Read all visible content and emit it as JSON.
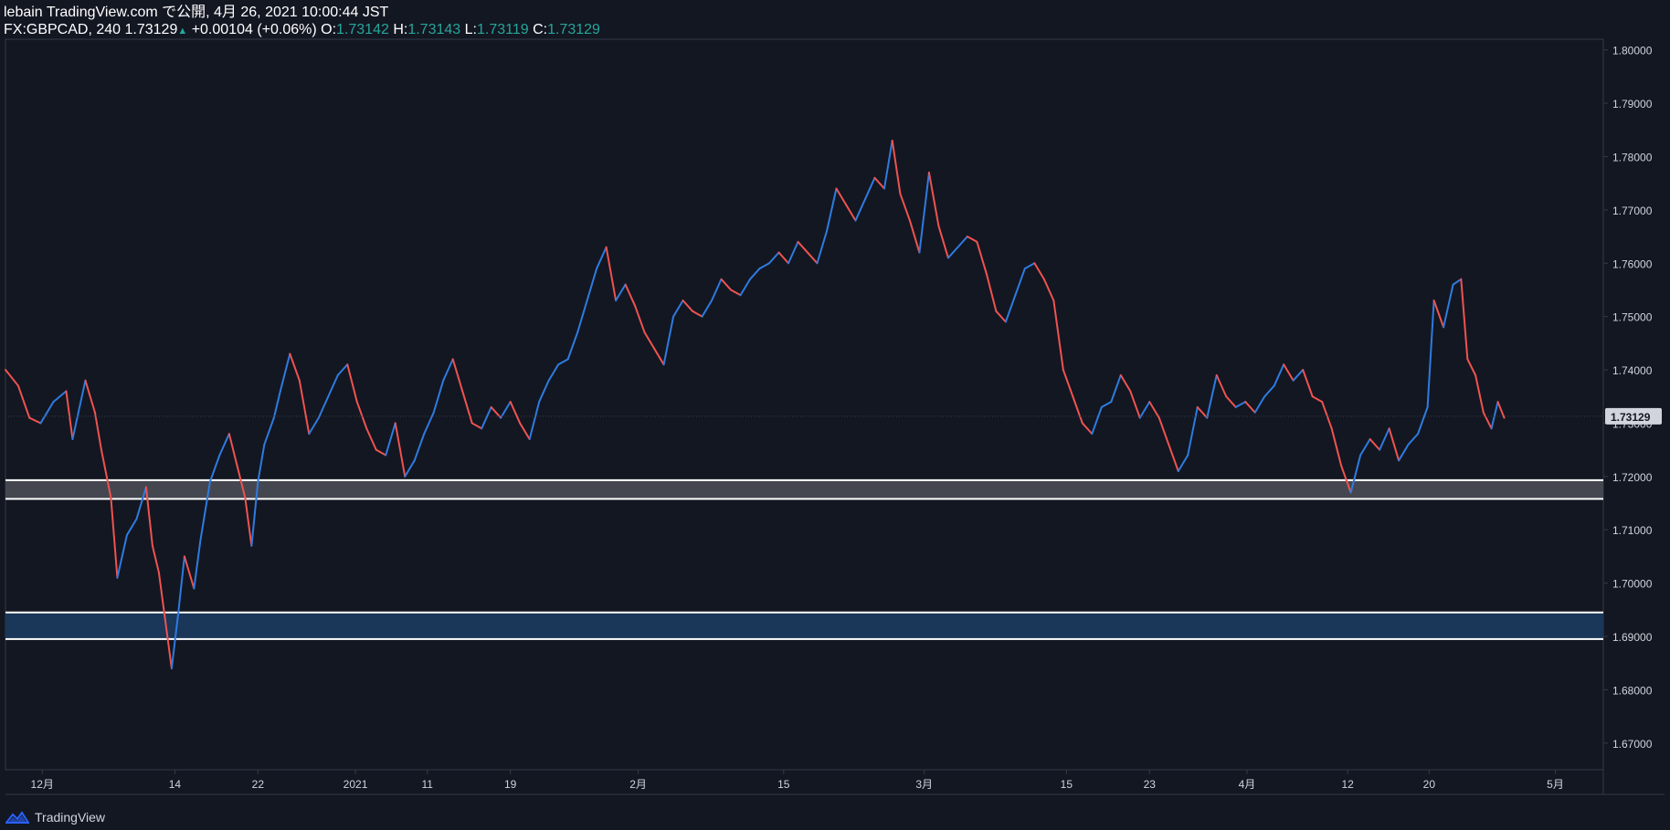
{
  "header": {
    "line1": "lebain TradingView.com で公開, 4月 26, 2021 10:00:44 JST",
    "symbol_interval": "FX:GBPCAD, 240",
    "last": "1.73129",
    "change": "+0.00104 (+0.06%)",
    "o_label": "O:",
    "o": "1.73142",
    "h_label": "H:",
    "h": "1.73143",
    "l_label": "L:",
    "l": "1.73119",
    "c_label": "C:",
    "c": "1.73129"
  },
  "footer": {
    "brand": "TradingView"
  },
  "colors": {
    "bg": "#131722",
    "up": "#2e7be0",
    "down": "#ef5350",
    "grid": "#363a45",
    "text": "#d1d4dc"
  },
  "chart_data": {
    "type": "line",
    "instrument": "FX:GBPCAD",
    "interval": "240",
    "ylim": [
      1.665,
      1.802
    ],
    "y_ticks": [
      "1.80000",
      "1.79000",
      "1.78000",
      "1.77000",
      "1.76000",
      "1.75000",
      "1.74000",
      "1.73000",
      "1.72000",
      "1.71000",
      "1.70000",
      "1.69000",
      "1.68000",
      "1.67000"
    ],
    "x_ticks": [
      {
        "label": "12月",
        "t": 0.023
      },
      {
        "label": "14",
        "t": 0.106
      },
      {
        "label": "22",
        "t": 0.158
      },
      {
        "label": "2021",
        "t": 0.219
      },
      {
        "label": "11",
        "t": 0.264
      },
      {
        "label": "19",
        "t": 0.316
      },
      {
        "label": "2月",
        "t": 0.396
      },
      {
        "label": "15",
        "t": 0.487
      },
      {
        "label": "3月",
        "t": 0.575
      },
      {
        "label": "15",
        "t": 0.664
      },
      {
        "label": "23",
        "t": 0.716
      },
      {
        "label": "4月",
        "t": 0.777
      },
      {
        "label": "12",
        "t": 0.84
      },
      {
        "label": "20",
        "t": 0.891
      },
      {
        "label": "5月",
        "t": 0.97
      }
    ],
    "last_price": "1.73129",
    "zones": [
      {
        "top": 1.7193,
        "bottom": 1.7158,
        "style": "gray"
      },
      {
        "top": 1.6945,
        "bottom": 1.6895,
        "style": "blue"
      }
    ],
    "price_path": [
      [
        0.0,
        1.74
      ],
      [
        0.008,
        1.737
      ],
      [
        0.015,
        1.731
      ],
      [
        0.022,
        1.73
      ],
      [
        0.03,
        1.734
      ],
      [
        0.038,
        1.736
      ],
      [
        0.042,
        1.727
      ],
      [
        0.05,
        1.738
      ],
      [
        0.056,
        1.732
      ],
      [
        0.06,
        1.725
      ],
      [
        0.066,
        1.716
      ],
      [
        0.07,
        1.701
      ],
      [
        0.076,
        1.709
      ],
      [
        0.082,
        1.712
      ],
      [
        0.088,
        1.718
      ],
      [
        0.092,
        1.707
      ],
      [
        0.096,
        1.702
      ],
      [
        0.1,
        1.693
      ],
      [
        0.104,
        1.684
      ],
      [
        0.108,
        1.694
      ],
      [
        0.112,
        1.705
      ],
      [
        0.118,
        1.699
      ],
      [
        0.122,
        1.708
      ],
      [
        0.128,
        1.719
      ],
      [
        0.134,
        1.724
      ],
      [
        0.14,
        1.728
      ],
      [
        0.145,
        1.722
      ],
      [
        0.15,
        1.716
      ],
      [
        0.154,
        1.707
      ],
      [
        0.158,
        1.719
      ],
      [
        0.162,
        1.726
      ],
      [
        0.168,
        1.731
      ],
      [
        0.172,
        1.736
      ],
      [
        0.178,
        1.743
      ],
      [
        0.184,
        1.738
      ],
      [
        0.19,
        1.728
      ],
      [
        0.196,
        1.731
      ],
      [
        0.202,
        1.735
      ],
      [
        0.208,
        1.739
      ],
      [
        0.214,
        1.741
      ],
      [
        0.22,
        1.734
      ],
      [
        0.226,
        1.729
      ],
      [
        0.232,
        1.725
      ],
      [
        0.238,
        1.724
      ],
      [
        0.244,
        1.73
      ],
      [
        0.25,
        1.72
      ],
      [
        0.256,
        1.723
      ],
      [
        0.262,
        1.728
      ],
      [
        0.268,
        1.732
      ],
      [
        0.274,
        1.738
      ],
      [
        0.28,
        1.742
      ],
      [
        0.286,
        1.736
      ],
      [
        0.292,
        1.73
      ],
      [
        0.298,
        1.729
      ],
      [
        0.304,
        1.733
      ],
      [
        0.31,
        1.731
      ],
      [
        0.316,
        1.734
      ],
      [
        0.322,
        1.73
      ],
      [
        0.328,
        1.727
      ],
      [
        0.334,
        1.734
      ],
      [
        0.34,
        1.738
      ],
      [
        0.346,
        1.741
      ],
      [
        0.352,
        1.742
      ],
      [
        0.358,
        1.747
      ],
      [
        0.364,
        1.753
      ],
      [
        0.37,
        1.759
      ],
      [
        0.376,
        1.763
      ],
      [
        0.382,
        1.753
      ],
      [
        0.388,
        1.756
      ],
      [
        0.394,
        1.752
      ],
      [
        0.4,
        1.747
      ],
      [
        0.406,
        1.744
      ],
      [
        0.412,
        1.741
      ],
      [
        0.418,
        1.75
      ],
      [
        0.424,
        1.753
      ],
      [
        0.43,
        1.751
      ],
      [
        0.436,
        1.75
      ],
      [
        0.442,
        1.753
      ],
      [
        0.448,
        1.757
      ],
      [
        0.454,
        1.755
      ],
      [
        0.46,
        1.754
      ],
      [
        0.466,
        1.757
      ],
      [
        0.472,
        1.759
      ],
      [
        0.478,
        1.76
      ],
      [
        0.484,
        1.762
      ],
      [
        0.49,
        1.76
      ],
      [
        0.496,
        1.764
      ],
      [
        0.502,
        1.762
      ],
      [
        0.508,
        1.76
      ],
      [
        0.514,
        1.766
      ],
      [
        0.52,
        1.774
      ],
      [
        0.526,
        1.771
      ],
      [
        0.532,
        1.768
      ],
      [
        0.538,
        1.772
      ],
      [
        0.544,
        1.776
      ],
      [
        0.55,
        1.774
      ],
      [
        0.555,
        1.783
      ],
      [
        0.56,
        1.773
      ],
      [
        0.566,
        1.768
      ],
      [
        0.572,
        1.762
      ],
      [
        0.578,
        1.777
      ],
      [
        0.584,
        1.767
      ],
      [
        0.59,
        1.761
      ],
      [
        0.596,
        1.763
      ],
      [
        0.602,
        1.765
      ],
      [
        0.608,
        1.764
      ],
      [
        0.614,
        1.758
      ],
      [
        0.62,
        1.751
      ],
      [
        0.626,
        1.749
      ],
      [
        0.632,
        1.754
      ],
      [
        0.638,
        1.759
      ],
      [
        0.644,
        1.76
      ],
      [
        0.65,
        1.757
      ],
      [
        0.656,
        1.753
      ],
      [
        0.662,
        1.74
      ],
      [
        0.668,
        1.735
      ],
      [
        0.674,
        1.73
      ],
      [
        0.68,
        1.728
      ],
      [
        0.686,
        1.733
      ],
      [
        0.692,
        1.734
      ],
      [
        0.698,
        1.739
      ],
      [
        0.704,
        1.736
      ],
      [
        0.71,
        1.731
      ],
      [
        0.716,
        1.734
      ],
      [
        0.722,
        1.731
      ],
      [
        0.728,
        1.726
      ],
      [
        0.734,
        1.721
      ],
      [
        0.74,
        1.724
      ],
      [
        0.746,
        1.733
      ],
      [
        0.752,
        1.731
      ],
      [
        0.758,
        1.739
      ],
      [
        0.764,
        1.735
      ],
      [
        0.77,
        1.733
      ],
      [
        0.776,
        1.734
      ],
      [
        0.782,
        1.732
      ],
      [
        0.788,
        1.735
      ],
      [
        0.794,
        1.737
      ],
      [
        0.8,
        1.741
      ],
      [
        0.806,
        1.738
      ],
      [
        0.812,
        1.74
      ],
      [
        0.818,
        1.735
      ],
      [
        0.824,
        1.734
      ],
      [
        0.83,
        1.729
      ],
      [
        0.836,
        1.722
      ],
      [
        0.842,
        1.717
      ],
      [
        0.848,
        1.724
      ],
      [
        0.854,
        1.727
      ],
      [
        0.86,
        1.725
      ],
      [
        0.866,
        1.729
      ],
      [
        0.872,
        1.723
      ],
      [
        0.878,
        1.726
      ],
      [
        0.884,
        1.728
      ],
      [
        0.89,
        1.733
      ],
      [
        0.894,
        1.753
      ],
      [
        0.9,
        1.748
      ],
      [
        0.906,
        1.756
      ],
      [
        0.911,
        1.757
      ],
      [
        0.915,
        1.742
      ],
      [
        0.92,
        1.739
      ],
      [
        0.925,
        1.732
      ],
      [
        0.93,
        1.729
      ],
      [
        0.934,
        1.734
      ],
      [
        0.938,
        1.731
      ]
    ]
  }
}
